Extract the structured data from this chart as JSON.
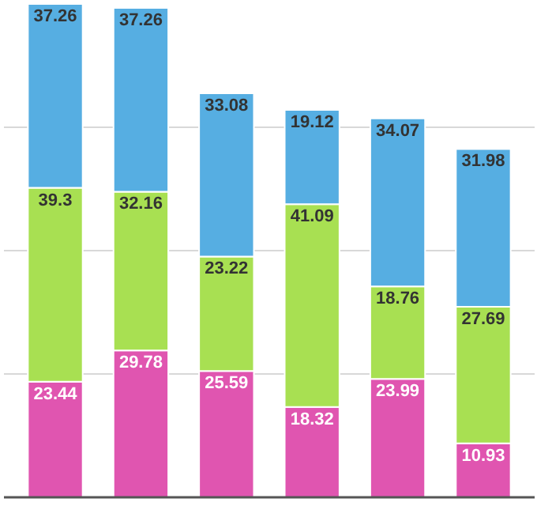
{
  "chart_data": {
    "type": "bar",
    "stacked": true,
    "categories": [
      null,
      null,
      null,
      null,
      null,
      null
    ],
    "series": [
      {
        "color": "#e055b0",
        "values": [
          23.44,
          29.78,
          25.59,
          18.32,
          23.99,
          10.93
        ]
      },
      {
        "color": "#a8e052",
        "values": [
          39.3,
          32.16,
          23.22,
          41.09,
          18.76,
          27.69
        ]
      },
      {
        "color": "#56aee2",
        "values": [
          37.26,
          37.26,
          33.08,
          19.12,
          34.07,
          31.98
        ]
      }
    ],
    "ylim": [
      0,
      100
    ],
    "yticks": [
      {
        "value": 0,
        "label": null
      },
      {
        "value": 25,
        "label": null
      },
      {
        "value": 50,
        "label": null
      },
      {
        "value": 75,
        "label": null
      }
    ],
    "grid": "y",
    "tick_labels": false,
    "data_labels": true
  }
}
